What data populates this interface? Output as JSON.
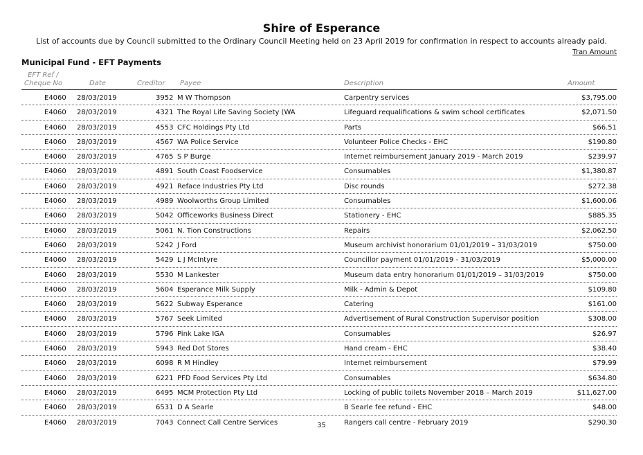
{
  "header": {
    "title": "Shire of Esperance",
    "subtitle": "List of accounts due by Council submitted to the Ordinary Council Meeting held on 23 April 2019 for confirmation in respect to accounts already paid.",
    "tran_amount": "Tran Amount",
    "section": "Municipal Fund - EFT Payments"
  },
  "columns": {
    "ref_line1": "EFT Ref /",
    "ref_line2": "Cheque No",
    "date": "Date",
    "creditor": "Creditor",
    "payee": "Payee",
    "description": "Description",
    "amount": "Amount"
  },
  "rows": [
    {
      "ref": "E4060",
      "date": "28/03/2019",
      "creditor": "3952",
      "payee": "M W Thompson",
      "description": "Carpentry services",
      "amount": "$3,795.00"
    },
    {
      "ref": "E4060",
      "date": "28/03/2019",
      "creditor": "4321",
      "payee": "The Royal Life Saving Society (WA",
      "description": "Lifeguard requalifications & swim school certificates",
      "amount": "$2,071.50"
    },
    {
      "ref": "E4060",
      "date": "28/03/2019",
      "creditor": "4553",
      "payee": "CFC Holdings Pty Ltd",
      "description": "Parts",
      "amount": "$66.51"
    },
    {
      "ref": "E4060",
      "date": "28/03/2019",
      "creditor": "4567",
      "payee": "WA Police Service",
      "description": "Volunteer Police Checks - EHC",
      "amount": "$190.80"
    },
    {
      "ref": "E4060",
      "date": "28/03/2019",
      "creditor": "4765",
      "payee": "S P Burge",
      "description": "Internet reimbursement January 2019 - March 2019",
      "amount": "$239.97"
    },
    {
      "ref": "E4060",
      "date": "28/03/2019",
      "creditor": "4891",
      "payee": "South Coast Foodservice",
      "description": "Consumables",
      "amount": "$1,380.87"
    },
    {
      "ref": "E4060",
      "date": "28/03/2019",
      "creditor": "4921",
      "payee": "Reface Industries  Pty Ltd",
      "description": "Disc rounds",
      "amount": "$272.38"
    },
    {
      "ref": "E4060",
      "date": "28/03/2019",
      "creditor": "4989",
      "payee": "Woolworths Group Limited",
      "description": "Consumables",
      "amount": "$1,600.06"
    },
    {
      "ref": "E4060",
      "date": "28/03/2019",
      "creditor": "5042",
      "payee": "Officeworks Business Direct",
      "description": "Stationery - EHC",
      "amount": "$885.35"
    },
    {
      "ref": "E4060",
      "date": "28/03/2019",
      "creditor": "5061",
      "payee": "N. Tion Constructions",
      "description": "Repairs",
      "amount": "$2,062.50"
    },
    {
      "ref": "E4060",
      "date": "28/03/2019",
      "creditor": "5242",
      "payee": "J Ford",
      "description": "Museum archivist honorarium 01/01/2019 – 31/03/2019",
      "amount": "$750.00"
    },
    {
      "ref": "E4060",
      "date": "28/03/2019",
      "creditor": "5429",
      "payee": "L J McIntyre",
      "description": "Councillor payment 01/01/2019 - 31/03/2019",
      "amount": "$5,000.00"
    },
    {
      "ref": "E4060",
      "date": "28/03/2019",
      "creditor": "5530",
      "payee": "M Lankester",
      "description": "Museum data entry honorarium 01/01/2019 – 31/03/2019",
      "amount": "$750.00"
    },
    {
      "ref": "E4060",
      "date": "28/03/2019",
      "creditor": "5604",
      "payee": "Esperance Milk Supply",
      "description": "Milk - Admin & Depot",
      "amount": "$109.80"
    },
    {
      "ref": "E4060",
      "date": "28/03/2019",
      "creditor": "5622",
      "payee": "Subway Esperance",
      "description": "Catering",
      "amount": "$161.00"
    },
    {
      "ref": "E4060",
      "date": "28/03/2019",
      "creditor": "5767",
      "payee": "Seek Limited",
      "description": "Advertisement of Rural Construction Supervisor position",
      "amount": "$308.00"
    },
    {
      "ref": "E4060",
      "date": "28/03/2019",
      "creditor": "5796",
      "payee": "Pink Lake IGA",
      "description": "Consumables",
      "amount": "$26.97"
    },
    {
      "ref": "E4060",
      "date": "28/03/2019",
      "creditor": "5943",
      "payee": "Red Dot Stores",
      "description": "Hand cream - EHC",
      "amount": "$38.40"
    },
    {
      "ref": "E4060",
      "date": "28/03/2019",
      "creditor": "6098",
      "payee": "R M Hindley",
      "description": "Internet reimbursement",
      "amount": "$79.99"
    },
    {
      "ref": "E4060",
      "date": "28/03/2019",
      "creditor": "6221",
      "payee": "PFD Food Services Pty Ltd",
      "description": "Consumables",
      "amount": "$634.80"
    },
    {
      "ref": "E4060",
      "date": "28/03/2019",
      "creditor": "6495",
      "payee": "MCM Protection Pty Ltd",
      "description": "Locking of public toilets November 2018 – March 2019",
      "amount": "$11,627.00"
    },
    {
      "ref": "E4060",
      "date": "28/03/2019",
      "creditor": "6531",
      "payee": "D A Searle",
      "description": "B Searle fee refund - EHC",
      "amount": "$48.00"
    },
    {
      "ref": "E4060",
      "date": "28/03/2019",
      "creditor": "7043",
      "payee": "Connect Call Centre Services",
      "description": "Rangers call centre - February 2019",
      "amount": "$290.30"
    }
  ],
  "footer": {
    "page_number": "35"
  }
}
